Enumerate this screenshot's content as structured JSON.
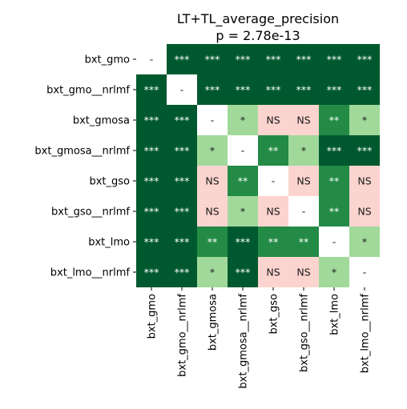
{
  "chart_data": {
    "type": "heatmap",
    "title": "LT+TL_average_precision",
    "subtitle": "p = 2.78e-13",
    "row_labels": [
      "bxt_gmo",
      "bxt_gmo__nrlmf",
      "bxt_gmosa",
      "bxt_gmosa__nrlmf",
      "bxt_gso",
      "bxt_gso__nrlmf",
      "bxt_lmo",
      "bxt_lmo__nrlmf"
    ],
    "col_labels": [
      "bxt_gmo",
      "bxt_gmo__nrlmf",
      "bxt_gmosa",
      "bxt_gmosa__nrlmf",
      "bxt_gso",
      "bxt_gso__nrlmf",
      "bxt_lmo",
      "bxt_lmo__nrlmf"
    ],
    "cells": [
      [
        "-",
        "***",
        "***",
        "***",
        "***",
        "***",
        "***",
        "***"
      ],
      [
        "***",
        "-",
        "***",
        "***",
        "***",
        "***",
        "***",
        "***"
      ],
      [
        "***",
        "***",
        "-",
        "*",
        "NS",
        "NS",
        "**",
        "*"
      ],
      [
        "***",
        "***",
        "*",
        "-",
        "**",
        "*",
        "***",
        "***"
      ],
      [
        "***",
        "***",
        "NS",
        "**",
        "-",
        "NS",
        "**",
        "NS"
      ],
      [
        "***",
        "***",
        "NS",
        "*",
        "NS",
        "-",
        "**",
        "NS"
      ],
      [
        "***",
        "***",
        "**",
        "***",
        "**",
        "**",
        "-",
        "*"
      ],
      [
        "***",
        "***",
        "*",
        "***",
        "NS",
        "NS",
        "*",
        "-"
      ]
    ],
    "colors": {
      "***": "#00592e",
      "**": "#238b45",
      "*": "#a1d99b",
      "NS": "#fcd4cf",
      "-": "#ffffff"
    },
    "text_colors": {
      "***": "#ffffff",
      "**": "#ffffff",
      "*": "#1a1a1a",
      "NS": "#1a1a1a",
      "-": "#1a1a1a"
    },
    "legend": "none"
  }
}
